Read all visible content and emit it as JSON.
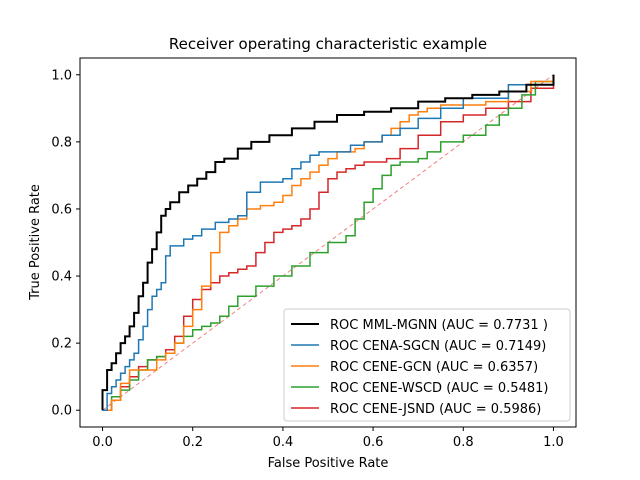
{
  "chart_data": {
    "type": "line",
    "title": "Receiver operating characteristic example",
    "xlabel": "False Positive Rate",
    "ylabel": "True Positive Rate",
    "xlim": [
      -0.05,
      1.05
    ],
    "ylim": [
      -0.05,
      1.05
    ],
    "xticks": [
      0.0,
      0.2,
      0.4,
      0.6,
      0.8,
      1.0
    ],
    "yticks": [
      0.0,
      0.2,
      0.4,
      0.6,
      0.8,
      1.0
    ],
    "xtick_labels": [
      "0.0",
      "0.2",
      "0.4",
      "0.6",
      "0.8",
      "1.0"
    ],
    "ytick_labels": [
      "0.0",
      "0.2",
      "0.4",
      "0.6",
      "0.8",
      "1.0"
    ],
    "grid": false,
    "legend_position": "lower-right",
    "diagonal": {
      "x": [
        0,
        1
      ],
      "y": [
        0,
        1
      ],
      "color": "#f08080",
      "style": "dashed"
    },
    "series": [
      {
        "name": "ROC MML-MGNN (AUC = 0.7731 )",
        "color": "#000000",
        "width": 2,
        "x": [
          0.0,
          0.0,
          0.01,
          0.01,
          0.02,
          0.03,
          0.04,
          0.05,
          0.06,
          0.07,
          0.08,
          0.09,
          0.1,
          0.11,
          0.12,
          0.13,
          0.14,
          0.15,
          0.17,
          0.19,
          0.21,
          0.23,
          0.25,
          0.27,
          0.3,
          0.33,
          0.37,
          0.42,
          0.47,
          0.52,
          0.58,
          0.64,
          0.7,
          0.76,
          0.82,
          0.88,
          0.94,
          1.0
        ],
        "y": [
          0.0,
          0.06,
          0.08,
          0.12,
          0.14,
          0.17,
          0.2,
          0.22,
          0.25,
          0.29,
          0.34,
          0.38,
          0.44,
          0.48,
          0.53,
          0.58,
          0.6,
          0.62,
          0.65,
          0.67,
          0.69,
          0.71,
          0.74,
          0.75,
          0.78,
          0.8,
          0.82,
          0.84,
          0.86,
          0.88,
          0.89,
          0.9,
          0.92,
          0.93,
          0.94,
          0.95,
          0.97,
          1.0
        ]
      },
      {
        "name": "ROC CENA-SGCN (AUC = 0.7149)",
        "color": "#1f77b4",
        "width": 1.5,
        "x": [
          0.0,
          0.01,
          0.02,
          0.03,
          0.04,
          0.05,
          0.06,
          0.07,
          0.08,
          0.09,
          0.1,
          0.11,
          0.12,
          0.13,
          0.14,
          0.15,
          0.18,
          0.2,
          0.22,
          0.25,
          0.28,
          0.3,
          0.32,
          0.35,
          0.38,
          0.4,
          0.42,
          0.44,
          0.46,
          0.48,
          0.5,
          0.55,
          0.58,
          0.62,
          0.66,
          0.7,
          0.75,
          0.8,
          0.9,
          1.0
        ],
        "y": [
          0.0,
          0.05,
          0.07,
          0.09,
          0.11,
          0.13,
          0.15,
          0.17,
          0.21,
          0.25,
          0.3,
          0.34,
          0.36,
          0.38,
          0.46,
          0.49,
          0.51,
          0.52,
          0.54,
          0.56,
          0.57,
          0.58,
          0.65,
          0.68,
          0.68,
          0.69,
          0.72,
          0.74,
          0.76,
          0.77,
          0.77,
          0.79,
          0.8,
          0.82,
          0.84,
          0.87,
          0.9,
          0.93,
          0.97,
          1.0
        ]
      },
      {
        "name": "ROC CENE-GCN (AUC = 0.6357)",
        "color": "#ff7f0e",
        "width": 1.5,
        "x": [
          0.0,
          0.02,
          0.04,
          0.06,
          0.08,
          0.1,
          0.12,
          0.14,
          0.16,
          0.18,
          0.2,
          0.22,
          0.24,
          0.26,
          0.28,
          0.3,
          0.32,
          0.35,
          0.38,
          0.4,
          0.42,
          0.44,
          0.46,
          0.48,
          0.5,
          0.52,
          0.54,
          0.56,
          0.58,
          0.6,
          0.62,
          0.64,
          0.66,
          0.68,
          0.7,
          0.72,
          0.75,
          0.8,
          0.85,
          0.9,
          0.95,
          1.0
        ],
        "y": [
          0.0,
          0.03,
          0.08,
          0.12,
          0.12,
          0.12,
          0.15,
          0.17,
          0.2,
          0.25,
          0.3,
          0.37,
          0.47,
          0.53,
          0.55,
          0.57,
          0.6,
          0.61,
          0.62,
          0.64,
          0.67,
          0.69,
          0.71,
          0.73,
          0.75,
          0.77,
          0.77,
          0.78,
          0.8,
          0.8,
          0.82,
          0.84,
          0.86,
          0.88,
          0.89,
          0.9,
          0.91,
          0.91,
          0.92,
          0.95,
          0.98,
          1.0
        ]
      },
      {
        "name": "ROC CENE-WSCD (AUC = 0.5481)",
        "color": "#2ca02c",
        "width": 1.5,
        "x": [
          0.0,
          0.02,
          0.04,
          0.06,
          0.08,
          0.1,
          0.12,
          0.14,
          0.16,
          0.18,
          0.2,
          0.22,
          0.24,
          0.26,
          0.28,
          0.3,
          0.34,
          0.38,
          0.42,
          0.46,
          0.5,
          0.54,
          0.56,
          0.58,
          0.6,
          0.62,
          0.64,
          0.66,
          0.68,
          0.7,
          0.72,
          0.75,
          0.8,
          0.85,
          0.88,
          0.9,
          0.93,
          0.96,
          1.0
        ],
        "y": [
          0.0,
          0.04,
          0.06,
          0.09,
          0.12,
          0.15,
          0.16,
          0.17,
          0.2,
          0.22,
          0.24,
          0.25,
          0.26,
          0.28,
          0.31,
          0.34,
          0.37,
          0.4,
          0.43,
          0.47,
          0.5,
          0.52,
          0.57,
          0.62,
          0.66,
          0.7,
          0.73,
          0.74,
          0.74,
          0.75,
          0.77,
          0.8,
          0.82,
          0.85,
          0.88,
          0.9,
          0.94,
          0.98,
          1.0
        ]
      },
      {
        "name": "ROC CENE-JSND (AUC = 0.5986)",
        "color": "#d62728",
        "width": 1.5,
        "x": [
          0.0,
          0.02,
          0.04,
          0.06,
          0.08,
          0.1,
          0.12,
          0.14,
          0.16,
          0.18,
          0.2,
          0.22,
          0.24,
          0.26,
          0.28,
          0.3,
          0.32,
          0.34,
          0.36,
          0.38,
          0.4,
          0.42,
          0.44,
          0.46,
          0.48,
          0.5,
          0.52,
          0.54,
          0.56,
          0.58,
          0.6,
          0.63,
          0.66,
          0.7,
          0.75,
          0.8,
          0.85,
          0.9,
          0.95,
          1.0
        ],
        "y": [
          0.0,
          0.03,
          0.07,
          0.1,
          0.13,
          0.15,
          0.16,
          0.18,
          0.22,
          0.28,
          0.33,
          0.36,
          0.38,
          0.4,
          0.41,
          0.42,
          0.43,
          0.47,
          0.5,
          0.53,
          0.54,
          0.55,
          0.57,
          0.6,
          0.65,
          0.69,
          0.71,
          0.72,
          0.73,
          0.74,
          0.74,
          0.75,
          0.78,
          0.82,
          0.86,
          0.88,
          0.9,
          0.92,
          0.96,
          1.0
        ]
      }
    ]
  }
}
